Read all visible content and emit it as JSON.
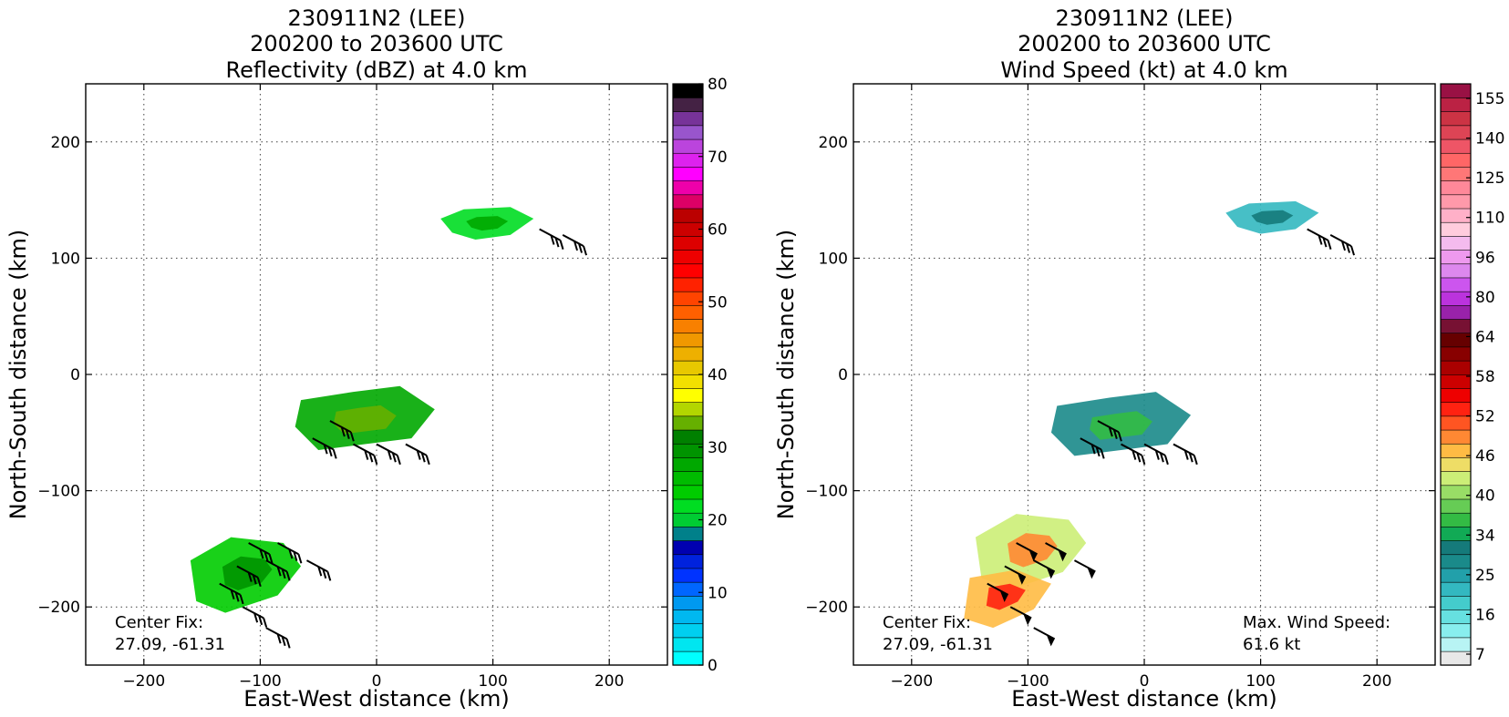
{
  "figure": {
    "panels": [
      {
        "title_lines": [
          "230911N2 (LEE)",
          "200200 to 203600 UTC",
          "Reflectivity (dBZ) at 4.0 km"
        ],
        "xlabel": "East-West distance (km)",
        "ylabel": "North-South distance (km)",
        "annotations": {
          "center_fix_label": "Center Fix:",
          "center_fix_value": "27.09, -61.31"
        },
        "colorbar": {
          "tick_labels": [
            "0",
            "10",
            "20",
            "30",
            "40",
            "50",
            "60",
            "70",
            "80"
          ],
          "colors": [
            "#00ffff",
            "#00e6f0",
            "#00cff0",
            "#00b8f0",
            "#0099f0",
            "#0066ff",
            "#0033ff",
            "#0022dd",
            "#0000b0",
            "#00808a",
            "#00cc33",
            "#00dd22",
            "#00cc00",
            "#00bb00",
            "#00a800",
            "#009400",
            "#008000",
            "#66b000",
            "#b3d600",
            "#ffff00",
            "#f2e000",
            "#e8c800",
            "#eeb000",
            "#f09800",
            "#f88000",
            "#ff6000",
            "#ff4400",
            "#ff2200",
            "#ff0000",
            "#ee0000",
            "#dd0000",
            "#cc0000",
            "#bb0000",
            "#dd0066",
            "#ee00aa",
            "#ff00ff",
            "#dd22ee",
            "#bb44dd",
            "#9955cc",
            "#773399",
            "#442244",
            "#000000"
          ]
        }
      },
      {
        "title_lines": [
          "230911N2 (LEE)",
          "200200 to 203600 UTC",
          "Wind Speed (kt) at 4.0 km"
        ],
        "xlabel": "East-West distance (km)",
        "ylabel": "North-South distance (km)",
        "annotations": {
          "center_fix_label": "Center Fix:",
          "center_fix_value": "27.09, -61.31",
          "max_wind_label": "Max. Wind Speed:",
          "max_wind_value": "61.6 kt"
        },
        "colorbar": {
          "tick_labels": [
            "7",
            "16",
            "25",
            "34",
            "40",
            "46",
            "52",
            "58",
            "64",
            "80",
            "96",
            "110",
            "125",
            "140",
            "155"
          ],
          "colors": [
            "#e8e8e8",
            "#b8f4f4",
            "#88eeee",
            "#66e0e0",
            "#44cccc",
            "#33b8c0",
            "#22a0aa",
            "#1a8a8a",
            "#157a7a",
            "#11aa55",
            "#33bb44",
            "#66cc55",
            "#99dd66",
            "#ccee77",
            "#eedd66",
            "#ffbb44",
            "#ff8833",
            "#ff5522",
            "#ff2211",
            "#ee0000",
            "#cc0000",
            "#aa0000",
            "#880000",
            "#660000",
            "#771133",
            "#9922aa",
            "#bb33dd",
            "#cc55ee",
            "#dd88ee",
            "#ee99ee",
            "#f4bbee",
            "#ffccdd",
            "#ffb0c8",
            "#ff99aa",
            "#ff8899",
            "#ff7777",
            "#ff6666",
            "#ee5566",
            "#dd4455",
            "#cc3344",
            "#bb2244",
            "#991144"
          ]
        }
      }
    ]
  },
  "chart_data": [
    {
      "type": "heatmap",
      "title": "230911N2 (LEE) 200200 to 203600 UTC Reflectivity (dBZ) at 4.0 km",
      "xlabel": "East-West distance (km)",
      "ylabel": "North-South distance (km)",
      "xlim": [
        -250,
        250
      ],
      "ylim": [
        -250,
        250
      ],
      "xticks": [
        "−200",
        "−100",
        "0",
        "100",
        "200"
      ],
      "yticks": [
        "200",
        "100",
        "0",
        "−100",
        "−200"
      ],
      "grid": true,
      "colorbar_range": [
        0,
        80
      ],
      "colorbar_unit": "dBZ",
      "echo_regions": [
        {
          "center": [
            95,
            130
          ],
          "dbz": 22
        },
        {
          "center": [
            -10,
            -40
          ],
          "dbz": 28
        },
        {
          "center": [
            -110,
            -170
          ],
          "dbz": 24
        }
      ],
      "wind_barbs": [
        {
          "x": 140,
          "y": 125
        },
        {
          "x": 160,
          "y": 120
        },
        {
          "x": -40,
          "y": -40
        },
        {
          "x": -55,
          "y": -55
        },
        {
          "x": -20,
          "y": -60
        },
        {
          "x": 0,
          "y": -60
        },
        {
          "x": 25,
          "y": -60
        },
        {
          "x": -110,
          "y": -145
        },
        {
          "x": -85,
          "y": -145
        },
        {
          "x": -120,
          "y": -165
        },
        {
          "x": -95,
          "y": -160
        },
        {
          "x": -60,
          "y": -160
        },
        {
          "x": -135,
          "y": -180
        },
        {
          "x": -115,
          "y": -200
        },
        {
          "x": -95,
          "y": -218
        }
      ]
    },
    {
      "type": "heatmap",
      "title": "230911N2 (LEE) 200200 to 203600 UTC Wind Speed (kt) at 4.0 km",
      "xlabel": "East-West distance (km)",
      "ylabel": "North-South distance (km)",
      "xlim": [
        -250,
        250
      ],
      "ylim": [
        -250,
        250
      ],
      "xticks": [
        "−200",
        "−100",
        "0",
        "100",
        "200"
      ],
      "yticks": [
        "200",
        "100",
        "0",
        "−100",
        "−200"
      ],
      "grid": true,
      "colorbar_range": [
        0,
        160
      ],
      "colorbar_unit": "kt",
      "max_wind_speed_kt": 61.6,
      "wind_regions": [
        {
          "center": [
            110,
            135
          ],
          "kt": 20
        },
        {
          "center": [
            -20,
            -45
          ],
          "kt": 28
        },
        {
          "center": [
            -95,
            -150
          ],
          "kt": 52
        },
        {
          "center": [
            -120,
            -190
          ],
          "kt": 60
        }
      ],
      "wind_barbs": [
        {
          "x": 140,
          "y": 125
        },
        {
          "x": 160,
          "y": 120
        },
        {
          "x": -40,
          "y": -40
        },
        {
          "x": -55,
          "y": -55
        },
        {
          "x": -20,
          "y": -60
        },
        {
          "x": 0,
          "y": -60
        },
        {
          "x": 25,
          "y": -60
        },
        {
          "x": -110,
          "y": -145
        },
        {
          "x": -85,
          "y": -145
        },
        {
          "x": -120,
          "y": -165
        },
        {
          "x": -95,
          "y": -160
        },
        {
          "x": -60,
          "y": -160
        },
        {
          "x": -135,
          "y": -180
        },
        {
          "x": -115,
          "y": -200
        },
        {
          "x": -95,
          "y": -218
        }
      ]
    }
  ]
}
